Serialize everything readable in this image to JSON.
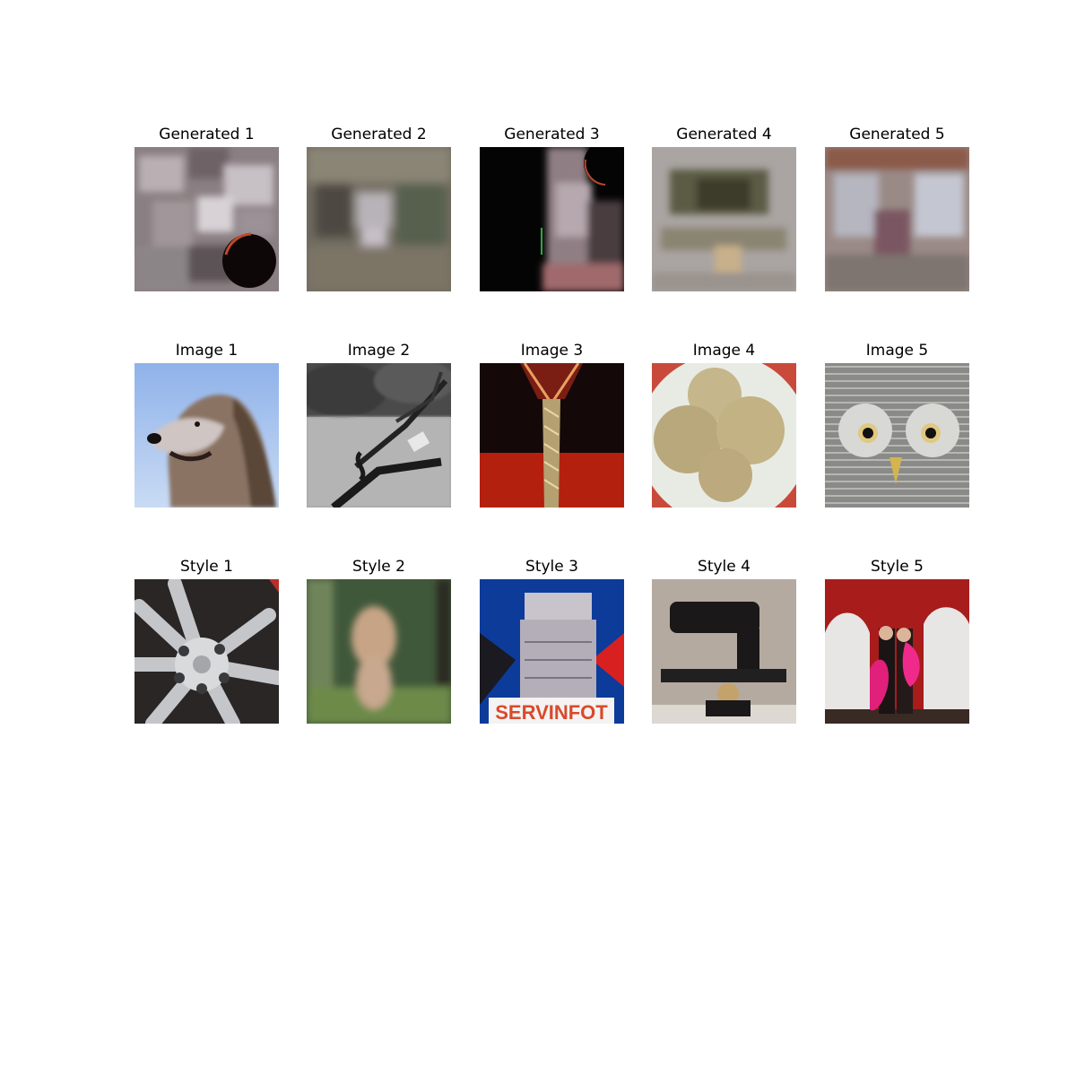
{
  "rows": [
    {
      "name": "generated",
      "titles": [
        "Generated 1",
        "Generated 2",
        "Generated 3",
        "Generated 4",
        "Generated 5"
      ]
    },
    {
      "name": "image",
      "titles": [
        "Image 1",
        "Image 2",
        "Image 3",
        "Image 4",
        "Image 5"
      ]
    },
    {
      "name": "style",
      "titles": [
        "Style 1",
        "Style 2",
        "Style 3",
        "Style 4",
        "Style 5"
      ]
    }
  ],
  "style_3_text": "SERVINFOT"
}
